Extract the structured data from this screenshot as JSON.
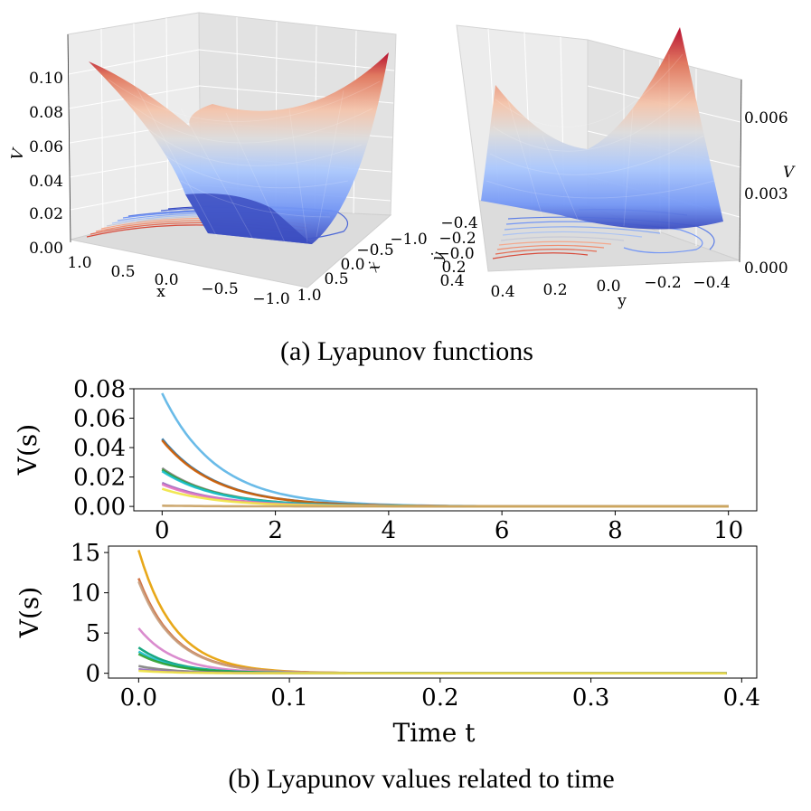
{
  "captions": {
    "a": "(a) Lyapunov functions",
    "b": "(b) Lyapunov values related to time"
  },
  "colors": {
    "surface_low": "#3b4cc0",
    "surface_mid": "#dddcdc",
    "surface_high": "#b40426",
    "pane": "#ececec",
    "pane_grid": "#ffffff",
    "tab": [
      "#1f77b4",
      "#ff7f0e",
      "#2ca02c",
      "#d62728",
      "#9467bd",
      "#8c564b",
      "#e377c2",
      "#7f7f7f",
      "#bcbd22",
      "#17becf"
    ]
  },
  "chart_data": [
    {
      "type": "surface3d",
      "panel": "a-left",
      "xlabel": "x",
      "ylabel": "ẋ",
      "zlabel": "V",
      "x_ticks": [
        "1.0",
        "0.5",
        "0.0",
        "−0.5",
        "−1.0"
      ],
      "y_ticks": [
        "1.0",
        "0.5",
        "0.0",
        "−0.5",
        "−1.0"
      ],
      "z_ticks": [
        "0.00",
        "0.02",
        "0.04",
        "0.06",
        "0.08",
        "0.10"
      ],
      "xlim": [
        -1,
        1
      ],
      "ylim": [
        -1,
        1
      ],
      "zlim": [
        0,
        0.1
      ],
      "colormap": "coolwarm",
      "contour_projection": true
    },
    {
      "type": "surface3d",
      "panel": "a-right",
      "xlabel": "y",
      "ylabel": "ẏ",
      "zlabel": "V",
      "x_ticks": [
        "0.4",
        "0.2",
        "0.0",
        "−0.2",
        "−0.4"
      ],
      "y_ticks": [
        "−0.4",
        "−0.2",
        "−0.0",
        "0.2",
        "0.4"
      ],
      "z_ticks": [
        "0.000",
        "0.003",
        "0.006"
      ],
      "xlim": [
        -0.4,
        0.4
      ],
      "ylim": [
        -0.4,
        0.4
      ],
      "zlim": [
        0,
        0.0075
      ],
      "colormap": "coolwarm",
      "contour_projection": true
    },
    {
      "type": "line",
      "panel": "b-top",
      "xlabel": "",
      "ylabel": "V(s)",
      "xlim": [
        -0.5,
        10.5
      ],
      "ylim": [
        -0.003,
        0.08
      ],
      "x_ticks": [
        0,
        2,
        4,
        6,
        8,
        10
      ],
      "x_tick_labels": [
        "0",
        "2",
        "4",
        "6",
        "8",
        "10"
      ],
      "y_ticks": [
        0,
        0.02,
        0.04,
        0.06,
        0.08
      ],
      "y_tick_labels": [
        "0.00",
        "0.02",
        "0.04",
        "0.06",
        "0.08"
      ],
      "x_end": 10,
      "decay_rate": 1.05,
      "series": [
        {
          "v0": 0.077,
          "color": "#5ab4e5"
        },
        {
          "v0": 0.046,
          "color": "#1f77b4"
        },
        {
          "v0": 0.045,
          "color": "#d55e00"
        },
        {
          "v0": 0.026,
          "color": "#7f7f7f"
        },
        {
          "v0": 0.025,
          "color": "#2ca02c"
        },
        {
          "v0": 0.024,
          "color": "#17becf"
        },
        {
          "v0": 0.016,
          "color": "#9467bd"
        },
        {
          "v0": 0.015,
          "color": "#e377c2"
        },
        {
          "v0": 0.012,
          "color": "#f0e442"
        },
        {
          "v0": 0.0005,
          "color": "#c8a060"
        }
      ]
    },
    {
      "type": "line",
      "panel": "b-bottom",
      "xlabel": "Time t",
      "ylabel": "V(s)",
      "xlim": [
        -0.02,
        0.41
      ],
      "ylim": [
        -0.6,
        15.8
      ],
      "x_ticks": [
        0,
        0.1,
        0.2,
        0.3,
        0.4
      ],
      "x_tick_labels": [
        "0.0",
        "0.1",
        "0.2",
        "0.3",
        "0.4"
      ],
      "y_ticks": [
        0,
        5,
        10,
        15
      ],
      "y_tick_labels": [
        "0",
        "5",
        "10",
        "15"
      ],
      "x_end": 0.39,
      "decay_rate": 42,
      "series": [
        {
          "v0": 15.3,
          "color": "#e69f00"
        },
        {
          "v0": 11.8,
          "color": "#cc6633"
        },
        {
          "v0": 11.4,
          "color": "#c8a080"
        },
        {
          "v0": 5.6,
          "color": "#d67fc9"
        },
        {
          "v0": 3.2,
          "color": "#009e73"
        },
        {
          "v0": 2.7,
          "color": "#17becf"
        },
        {
          "v0": 2.4,
          "color": "#2ca02c"
        },
        {
          "v0": 0.9,
          "color": "#7f7f7f"
        },
        {
          "v0": 0.5,
          "color": "#9467bd"
        },
        {
          "v0": 0.3,
          "color": "#f0e442"
        }
      ]
    }
  ]
}
